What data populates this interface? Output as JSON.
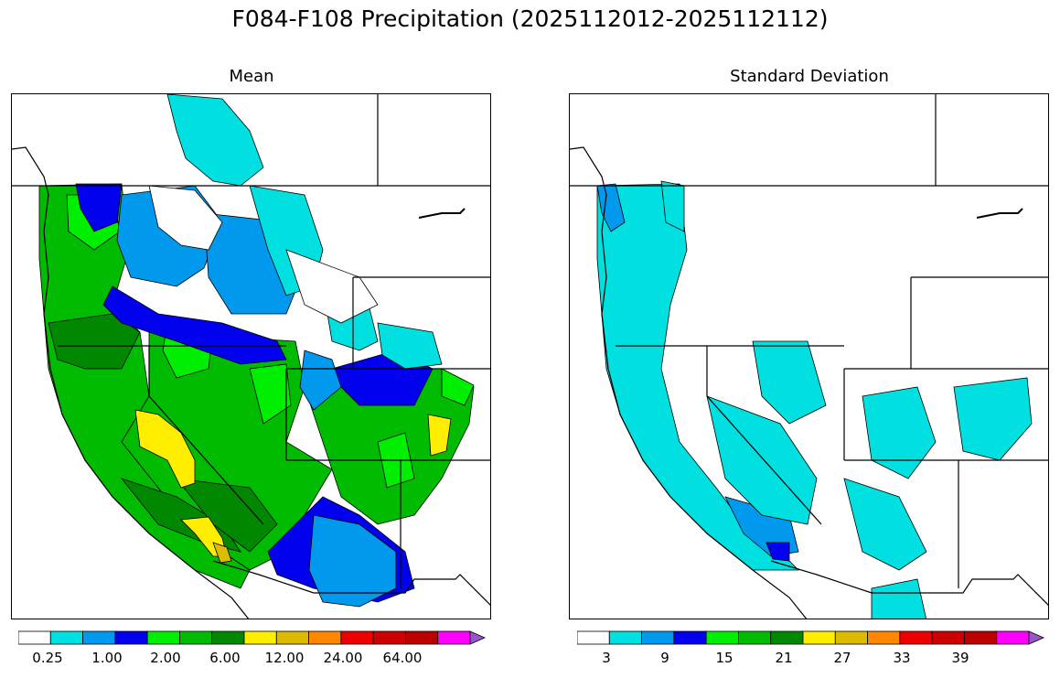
{
  "figure": {
    "title": "F084-F108 Precipitation (2025112012-2025112112)"
  },
  "panels": [
    {
      "title": "Mean",
      "colorbar": {
        "colors": [
          "#ffffff",
          "#00e0e0",
          "#0099ee",
          "#0000ee",
          "#00ee00",
          "#00bb00",
          "#008800",
          "#ffee00",
          "#ddbb00",
          "#ff8800",
          "#ee0000",
          "#cc0000",
          "#bb0000",
          "#ff00ff",
          "#9955cc"
        ],
        "tick_labels": [
          "0.25",
          "1.00",
          "2.00",
          "6.00",
          "12.00",
          "24.00",
          "64.00"
        ],
        "extend": "max"
      }
    },
    {
      "title": "Standard Deviation",
      "colorbar": {
        "colors": [
          "#ffffff",
          "#00e0e0",
          "#0099ee",
          "#0000ee",
          "#00ee00",
          "#00bb00",
          "#008800",
          "#ffee00",
          "#ddbb00",
          "#ff8800",
          "#ee0000",
          "#cc0000",
          "#bb0000",
          "#ff00ff",
          "#9955cc"
        ],
        "tick_labels": [
          "3",
          "9",
          "15",
          "21",
          "27",
          "33",
          "39"
        ],
        "extend": "max"
      }
    }
  ]
}
